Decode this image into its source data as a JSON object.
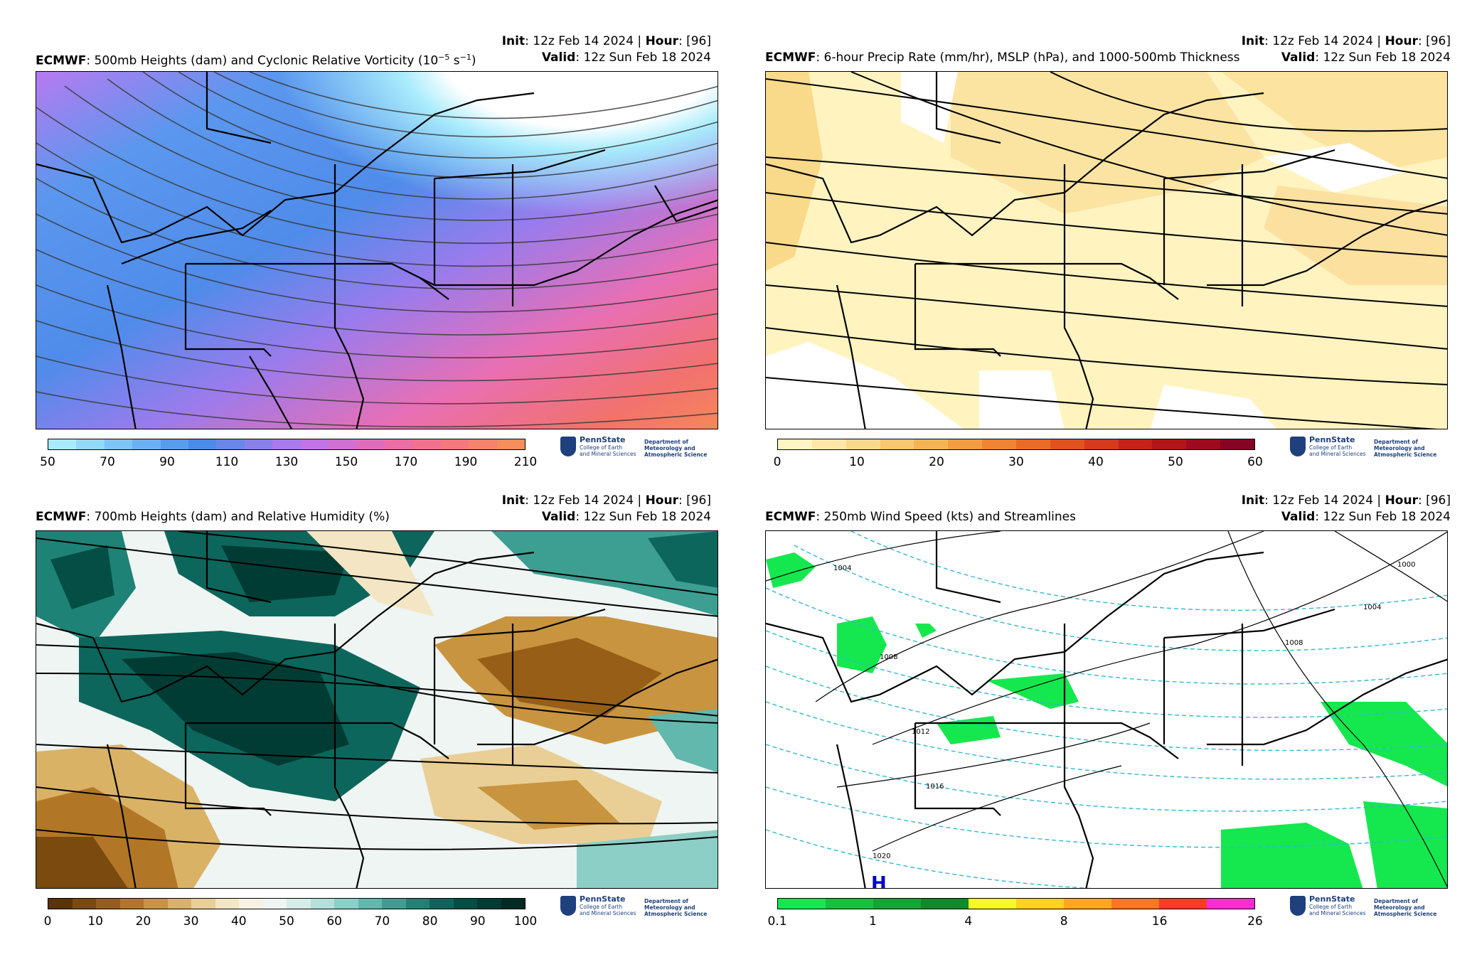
{
  "panels": [
    {
      "model": "ECMWF",
      "title": ": 500mb Heights (dam) and Cyclonic Relative Vorticity (10",
      "title_sup": "−5",
      "title_mid": " s",
      "title_sup2": "−1",
      "title_end": ")",
      "init_label": "Init",
      "init_value": ": 12z Feb 14 2024 | ",
      "hour_label": "Hour",
      "hour_value": ": [96]",
      "valid_label": "Valid",
      "valid_value": ": 12z Sun Feb 18 2024",
      "colorbar_ticks": [
        "50",
        "70",
        "90",
        "110",
        "130",
        "150",
        "170",
        "190",
        "210"
      ],
      "colorbar_colors": [
        "#a6ecfc",
        "#93d9fa",
        "#7fc4f7",
        "#6bb0f3",
        "#589cee",
        "#4a8ae9",
        "#6a86ea",
        "#8a80ec",
        "#a97aee",
        "#c273e7",
        "#d26fd2",
        "#e06dbb",
        "#ec6da4",
        "#f3718f",
        "#f5787d",
        "#f6826c",
        "#f68d5c"
      ]
    },
    {
      "model": "ECMWF",
      "title": ": 6-hour Precip Rate (mm/hr), MSLP (hPa), and 1000-500mb Thickness",
      "init_label": "Init",
      "init_value": ": 12z Feb 14 2024 | ",
      "hour_label": "Hour",
      "hour_value": ": [96]",
      "valid_label": "Valid",
      "valid_value": ": 12z Sun Feb 18 2024",
      "colorbar_ticks": [
        "0",
        "10",
        "20",
        "30",
        "40",
        "50",
        "60"
      ],
      "colorbar_colors": [
        "#fff5c4",
        "#fde8a8",
        "#fbd98a",
        "#f9c76f",
        "#f6b354",
        "#f39c41",
        "#f08432",
        "#ea6b27",
        "#e2521f",
        "#d6391b",
        "#c72219",
        "#b31419",
        "#9e0a1e",
        "#860424"
      ]
    },
    {
      "model": "ECMWF",
      "title": ": 700mb Heights (dam) and Relative Humidity (%)",
      "init_label": "Init",
      "init_value": ": 12z Feb 14 2024 | ",
      "hour_label": "Hour",
      "hour_value": ": [96]",
      "valid_label": "Valid",
      "valid_value": ": 12z Sun Feb 18 2024",
      "colorbar_ticks": [
        "0",
        "10",
        "20",
        "30",
        "40",
        "50",
        "60",
        "70",
        "80",
        "90",
        "100"
      ],
      "colorbar_colors": [
        "#5a3306",
        "#7a4a0e",
        "#975e17",
        "#b27726",
        "#c8943f",
        "#dab266",
        "#e9cf95",
        "#f4e6c4",
        "#f6f1e4",
        "#eef5f2",
        "#d5ece8",
        "#b3e0da",
        "#8ccfc6",
        "#62b8ad",
        "#3d9e92",
        "#1f8276",
        "#0d665c",
        "#044e45",
        "#003c34",
        "#002a24"
      ]
    },
    {
      "model": "ECMWF",
      "title": ": 250mb Wind Speed (kts) and Streamlines",
      "init_label": "Init",
      "init_value": ": 12z Feb 14 2024 | ",
      "hour_label": "Hour",
      "hour_value": ": [96]",
      "valid_label": "Valid",
      "valid_value": ": 12z Sun Feb 18 2024",
      "colorbar_ticks": [
        "0.1",
        "1",
        "4",
        "8",
        "16",
        "26"
      ],
      "colorbar_colors": [
        "#15e84e",
        "#10c43c",
        "#0ea834",
        "#0b8c2a",
        "#f6f926",
        "#ffd21c",
        "#ffa81e",
        "#ff7620",
        "#ff3a24",
        "#ff2cd6"
      ],
      "isobar_labels": [
        "1004",
        "1008",
        "1012",
        "1016",
        "1020",
        "1000",
        "1004",
        "1008"
      ],
      "high_label": "H"
    }
  ],
  "logo": {
    "name": "PennState",
    "college_line1": "College of Earth",
    "college_line2": "and Mineral Sciences",
    "dept_line1": "Department of",
    "dept_line2": "Meteorology and",
    "dept_line3": "Atmospheric Science"
  }
}
